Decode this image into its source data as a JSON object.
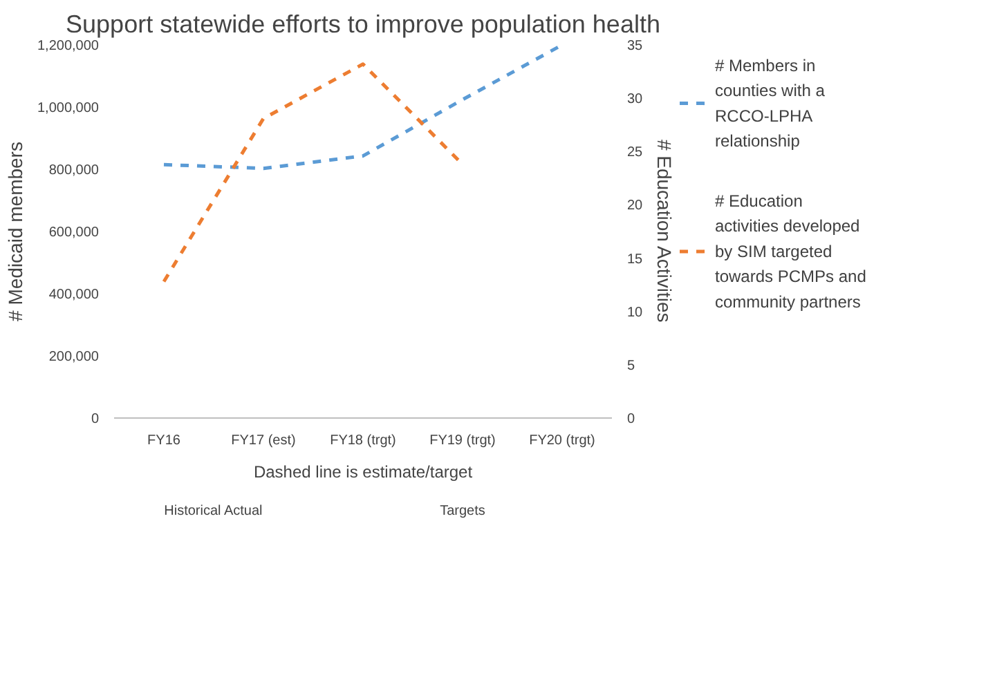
{
  "chart_data": {
    "type": "line",
    "title": "Support statewide efforts to improve population health",
    "categories": [
      "FY16",
      "FY17 (est)",
      "FY18 (trgt)",
      "FY19 (trgt)",
      "FY20 (trgt)"
    ],
    "series": [
      {
        "name": "# Members in counties with a RCCO-LPHA relationship",
        "color": "#5b9bd5",
        "values": [
          815000,
          803000,
          843000,
          1024000,
          1200000
        ]
      },
      {
        "name": "# Education activities developed by SIM targeted towards PCMPs and community partners",
        "color": "#ed7d31",
        "axis": "y2",
        "values": [
          12.8,
          28.1,
          33.2,
          23.8,
          null
        ]
      }
    ],
    "ylabel": "# Medicaid members",
    "y2label": "# Education Activities",
    "ylim": [
      0,
      1200000
    ],
    "yticks": [
      {
        "value": 0,
        "label": "0"
      },
      {
        "value": 200000,
        "label": "200,000"
      },
      {
        "value": 400000,
        "label": "400,000"
      },
      {
        "value": 600000,
        "label": "600,000"
      },
      {
        "value": 800000,
        "label": "800,000"
      },
      {
        "value": 1000000,
        "label": "1,000,000"
      },
      {
        "value": 1200000,
        "label": "1,200,000"
      }
    ],
    "y2lim": [
      0,
      35
    ],
    "y2ticks": [
      0,
      5,
      10,
      15,
      20,
      25,
      30,
      35
    ],
    "line_style": "dashed",
    "legend": "right",
    "annotations": [
      "Historical Actual",
      "Targets",
      "Dashed line is estimate/target"
    ]
  }
}
